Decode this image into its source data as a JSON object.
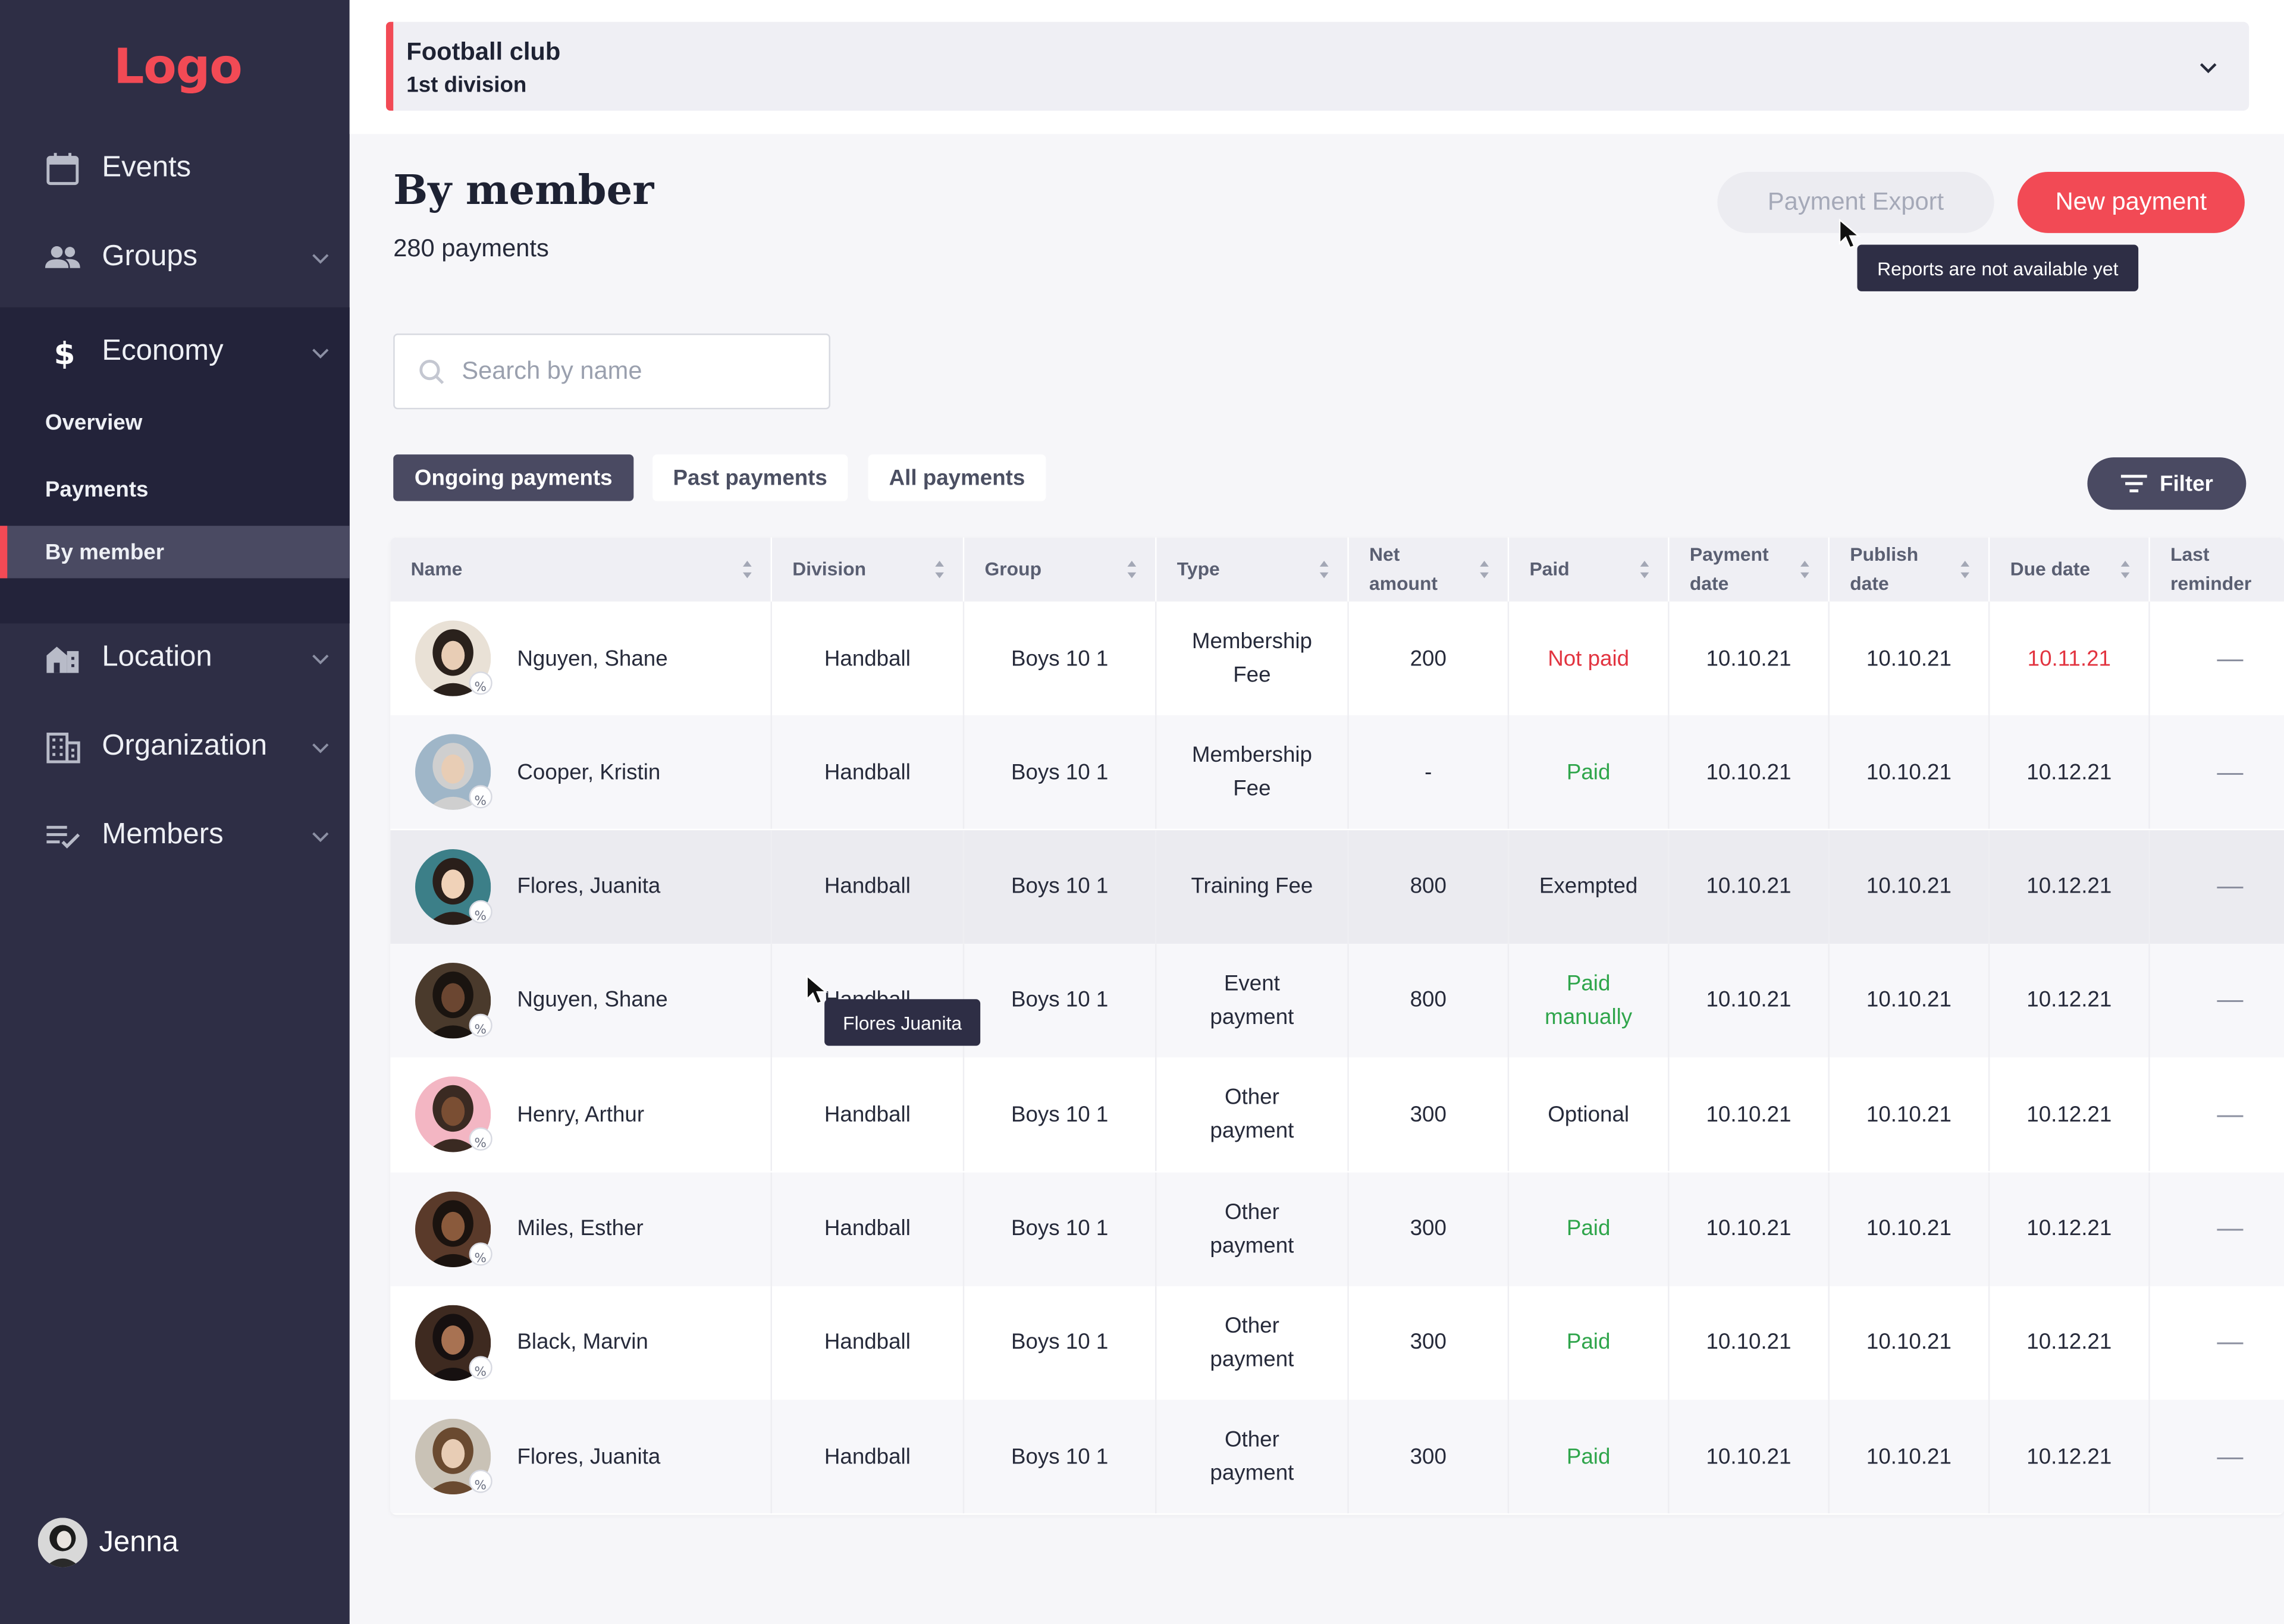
{
  "brand": {
    "logo": "Logo",
    "accent": "#f24a55",
    "sidebar_bg": "#2e2e45"
  },
  "sidebar": {
    "items": [
      {
        "label": "Events",
        "icon": "calendar-icon"
      },
      {
        "label": "Groups",
        "icon": "people-icon"
      },
      {
        "label": "Economy",
        "icon": "dollar-icon"
      },
      {
        "label": "Location",
        "icon": "location-building-icon"
      },
      {
        "label": "Organization",
        "icon": "organization-building-icon"
      },
      {
        "label": "Members",
        "icon": "checklist-icon"
      }
    ],
    "economy_sub": [
      {
        "label": "Overview"
      },
      {
        "label": "Payments"
      },
      {
        "label": "By member",
        "active": true
      }
    ],
    "user": {
      "name": "Jenna"
    }
  },
  "club": {
    "name": "Football club",
    "division": "1st division"
  },
  "header": {
    "title": "By member",
    "count": "280 payments",
    "export_label": "Payment Export",
    "new_label": "New payment",
    "export_tooltip": "Reports are not available yet"
  },
  "search": {
    "placeholder": "Search by name",
    "value": ""
  },
  "tabs": [
    {
      "label": "Ongoing payments",
      "active": true
    },
    {
      "label": "Past payments",
      "active": false
    },
    {
      "label": "All payments",
      "active": false
    }
  ],
  "filter": {
    "label": "Filter"
  },
  "table": {
    "columns": [
      "Name",
      "Division",
      "Group",
      "Type",
      "Net amount",
      "Paid",
      "Payment date",
      "Publish date",
      "Due date",
      "Last reminder"
    ],
    "column_lines": {
      "net": [
        "Net",
        "amount"
      ],
      "payment_date": [
        "Payment",
        "date"
      ],
      "publish_date": [
        "Publish",
        "date"
      ],
      "last_reminder": [
        "Last",
        "reminder"
      ]
    },
    "rows": [
      {
        "name": "Nguyen, Shane",
        "division": "Handball",
        "group": "Boys 10 1",
        "type": [
          "Membership",
          "Fee"
        ],
        "net": "200",
        "paid": "Not paid",
        "paid_status": "red",
        "payment_date": "10.10.21",
        "publish_date": "10.10.21",
        "due_date": "10.11.21",
        "due_status": "red",
        "reminder": "—"
      },
      {
        "name": "Cooper, Kristin",
        "division": "Handball",
        "group": "Boys 10 1",
        "type": [
          "Membership",
          "Fee"
        ],
        "net": "-",
        "paid": "Paid",
        "paid_status": "green",
        "payment_date": "10.10.21",
        "publish_date": "10.10.21",
        "due_date": "10.12.21",
        "due_status": "normal",
        "reminder": "—"
      },
      {
        "name": "Flores, Juanita",
        "division": "Handball",
        "group": "Boys 10 1",
        "type": [
          "Training Fee"
        ],
        "net": "800",
        "paid": "Exempted",
        "paid_status": "normal",
        "payment_date": "10.10.21",
        "publish_date": "10.10.21",
        "due_date": "10.12.21",
        "due_status": "normal",
        "reminder": "—"
      },
      {
        "name": "Nguyen, Shane",
        "division": "Handball",
        "group": "Boys 10 1",
        "type": [
          "Event",
          "payment"
        ],
        "net": "800",
        "paid": [
          "Paid",
          "manually"
        ],
        "paid_status": "green",
        "payment_date": "10.10.21",
        "publish_date": "10.10.21",
        "due_date": "10.12.21",
        "due_status": "normal",
        "reminder": "—"
      },
      {
        "name": "Henry, Arthur",
        "division": "Handball",
        "group": "Boys 10 1",
        "type": [
          "Other",
          "payment"
        ],
        "net": "300",
        "paid": "Optional",
        "paid_status": "normal",
        "payment_date": "10.10.21",
        "publish_date": "10.10.21",
        "due_date": "10.12.21",
        "due_status": "normal",
        "reminder": "—"
      },
      {
        "name": "Miles, Esther",
        "division": "Handball",
        "group": "Boys 10 1",
        "type": [
          "Other",
          "payment"
        ],
        "net": "300",
        "paid": "Paid",
        "paid_status": "green",
        "payment_date": "10.10.21",
        "publish_date": "10.10.21",
        "due_date": "10.12.21",
        "due_status": "normal",
        "reminder": "—"
      },
      {
        "name": "Black, Marvin",
        "division": "Handball",
        "group": "Boys 10 1",
        "type": [
          "Other",
          "payment"
        ],
        "net": "300",
        "paid": "Paid",
        "paid_status": "green",
        "payment_date": "10.10.21",
        "publish_date": "10.10.21",
        "due_date": "10.12.21",
        "due_status": "normal",
        "reminder": "—"
      },
      {
        "name": "Flores, Juanita",
        "division": "Handball",
        "group": "Boys 10 1",
        "type": [
          "Other",
          "payment"
        ],
        "net": "300",
        "paid": "Paid",
        "paid_status": "green",
        "payment_date": "10.10.21",
        "publish_date": "10.10.21",
        "due_date": "10.12.21",
        "due_status": "normal",
        "reminder": "—"
      }
    ],
    "row_tooltip": "Flores Juanita"
  },
  "colors": {
    "status_red": "#e23440",
    "status_green": "#2fa54b",
    "button_dark": "#4a4a62"
  }
}
